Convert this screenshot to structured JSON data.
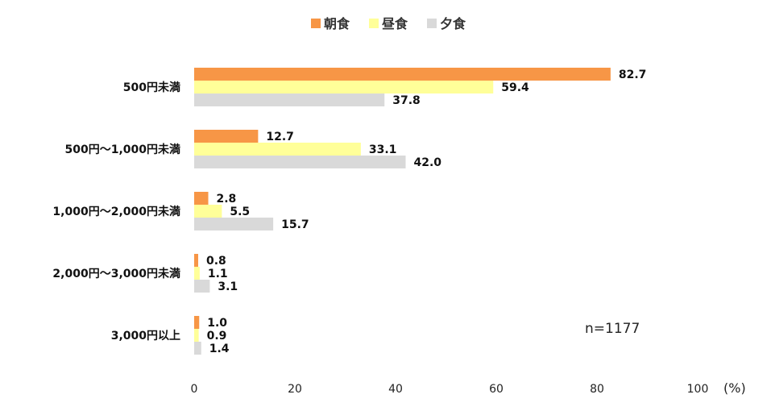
{
  "chart_data": {
    "type": "bar",
    "orientation": "horizontal",
    "categories": [
      "500円未満",
      "500円〜1,000円未満",
      "1,000円〜2,000円未満",
      "2,000円〜3,000円未満",
      "3,000円以上"
    ],
    "series": [
      {
        "name": "朝食",
        "color": "#F79646",
        "values": [
          82.7,
          12.7,
          2.8,
          0.8,
          1.0
        ]
      },
      {
        "name": "昼食",
        "color": "#FFFF99",
        "values": [
          59.4,
          33.1,
          5.5,
          1.1,
          0.9
        ]
      },
      {
        "name": "夕食",
        "color": "#D9D9D9",
        "values": [
          37.8,
          42.0,
          15.7,
          3.1,
          1.4
        ]
      }
    ],
    "value_labels": [
      [
        "82.7",
        "59.4",
        "37.8"
      ],
      [
        "12.7",
        "33.1",
        "42.0"
      ],
      [
        "2.8",
        "5.5",
        "15.7"
      ],
      [
        "0.8",
        "1.1",
        "3.1"
      ],
      [
        "1.0",
        "0.9",
        "1.4"
      ]
    ],
    "xlim": [
      0,
      100
    ],
    "xticks": [
      "0",
      "20",
      "40",
      "60",
      "80",
      "100"
    ],
    "unit": "(%)",
    "annotation": "n=1177",
    "legend_position": "top",
    "grid": false
  }
}
